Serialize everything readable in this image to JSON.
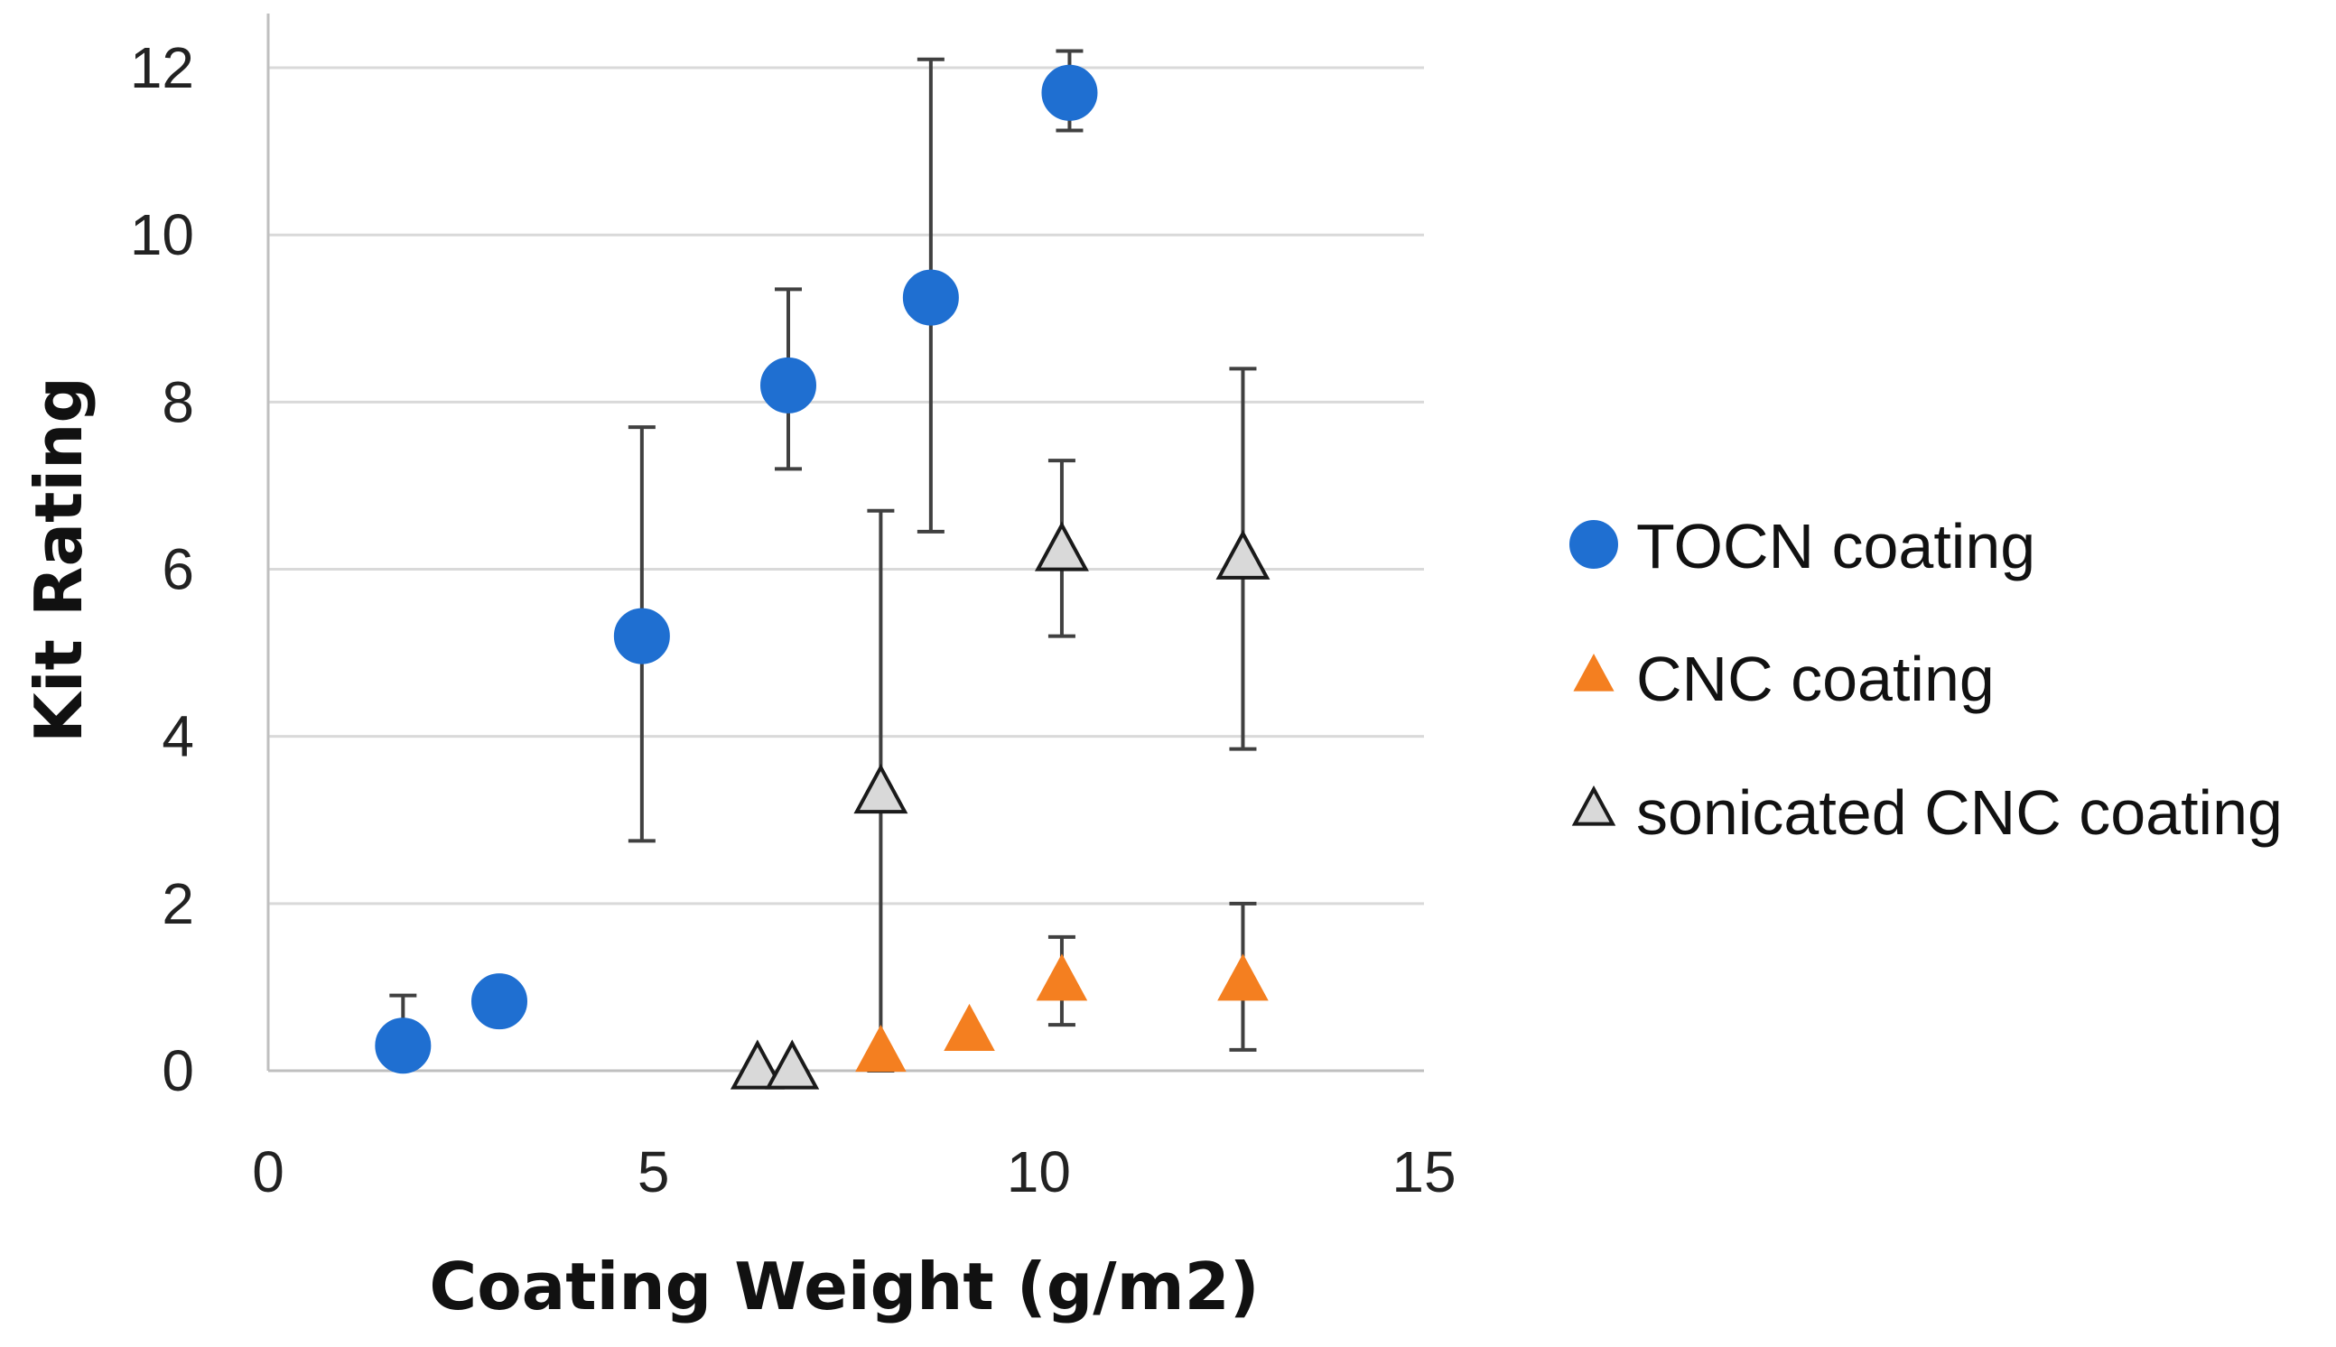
{
  "chart_data": {
    "type": "scatter",
    "title": "",
    "xlabel": "Coating Weight (g/m2)",
    "ylabel": "Kit Rating",
    "xlim": [
      0,
      15
    ],
    "ylim": [
      0,
      12.4
    ],
    "xticks": [
      0,
      5,
      10,
      15
    ],
    "yticks": [
      0,
      2,
      4,
      6,
      8,
      10,
      12
    ],
    "grid": "horizontal",
    "legend_position": "right",
    "series": [
      {
        "name": "TOCN coating",
        "marker": "circle",
        "color": "#1f6fd1",
        "points": [
          {
            "x": 1.75,
            "y": 0.3,
            "err_low": 0.0,
            "err_high": 0.6
          },
          {
            "x": 3.0,
            "y": 0.83,
            "err_low": 0.0,
            "err_high": 0.0
          },
          {
            "x": 4.85,
            "y": 5.2,
            "err_low": 2.45,
            "err_high": 2.5
          },
          {
            "x": 6.75,
            "y": 8.2,
            "err_low": 1.0,
            "err_high": 1.15
          },
          {
            "x": 8.6,
            "y": 9.25,
            "err_low": 2.8,
            "err_high": 2.85
          },
          {
            "x": 10.4,
            "y": 11.7,
            "err_low": 0.45,
            "err_high": 0.5
          }
        ]
      },
      {
        "name": "CNC coating",
        "marker": "triangle",
        "color": "#f47f20",
        "points": [
          {
            "x": 7.95,
            "y": 0.2,
            "err_low": 0.0,
            "err_high": 0.0
          },
          {
            "x": 9.1,
            "y": 0.45,
            "err_low": 0.0,
            "err_high": 0.0
          },
          {
            "x": 10.3,
            "y": 1.05,
            "err_low": 0.5,
            "err_high": 0.55
          },
          {
            "x": 12.65,
            "y": 1.05,
            "err_low": 0.8,
            "err_high": 0.95
          }
        ]
      },
      {
        "name": "sonicated CNC coating",
        "marker": "triangle-outline",
        "color": "#d9d9d9",
        "points": [
          {
            "x": 6.35,
            "y": 0.0,
            "err_low": 0.0,
            "err_high": 0.0
          },
          {
            "x": 6.8,
            "y": 0.0,
            "err_low": 0.0,
            "err_high": 0.0
          },
          {
            "x": 7.95,
            "y": 3.3,
            "err_low": 3.3,
            "err_high": 3.4
          },
          {
            "x": 10.3,
            "y": 6.2,
            "err_low": 1.0,
            "err_high": 1.1
          },
          {
            "x": 12.65,
            "y": 6.1,
            "err_low": 2.25,
            "err_high": 2.3
          }
        ]
      }
    ]
  }
}
